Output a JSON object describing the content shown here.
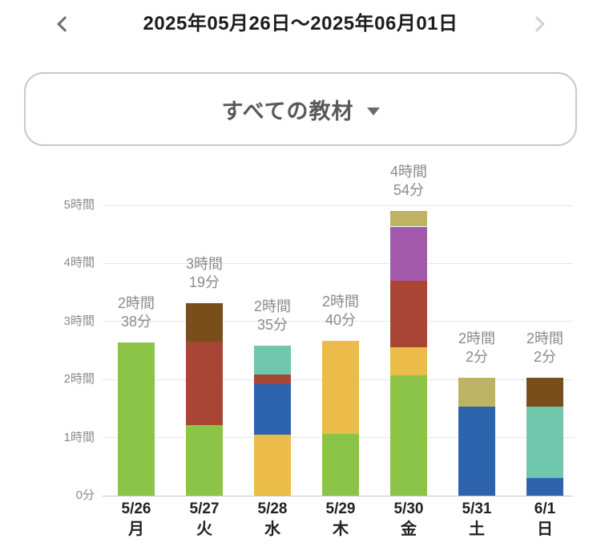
{
  "header": {
    "title": "2025年05月26日〜2025年06月01日",
    "prev_icon": "chevron-left-icon",
    "next_icon": "chevron-right-icon"
  },
  "filter": {
    "label": "すべての教材",
    "caret_icon": "caret-down-icon"
  },
  "chart_data": {
    "type": "bar",
    "stacked": true,
    "orientation": "vertical",
    "grid": true,
    "legend": "none",
    "y_axis": {
      "max_minutes": 300,
      "ticks": [
        {
          "minutes": 0,
          "label": "0分"
        },
        {
          "minutes": 60,
          "label": "1時間"
        },
        {
          "minutes": 120,
          "label": "2時間"
        },
        {
          "minutes": 180,
          "label": "3時間"
        },
        {
          "minutes": 240,
          "label": "4時間"
        },
        {
          "minutes": 300,
          "label": "5時間"
        }
      ]
    },
    "categories": [
      {
        "date": "5/26",
        "weekday": "月"
      },
      {
        "date": "5/27",
        "weekday": "火"
      },
      {
        "date": "5/28",
        "weekday": "水"
      },
      {
        "date": "5/29",
        "weekday": "木"
      },
      {
        "date": "5/30",
        "weekday": "金"
      },
      {
        "date": "5/31",
        "weekday": "土"
      },
      {
        "date": "6/1",
        "weekday": "日"
      }
    ],
    "series": [
      {
        "name": "material-green",
        "color": "#8cc447",
        "values_minutes": [
          158,
          73,
          0,
          64,
          124,
          0,
          0
        ]
      },
      {
        "name": "material-yellow",
        "color": "#ecbc4a",
        "values_minutes": [
          0,
          0,
          63,
          96,
          29,
          0,
          0
        ]
      },
      {
        "name": "material-blue",
        "color": "#2d64ad",
        "values_minutes": [
          0,
          0,
          52,
          0,
          0,
          92,
          18
        ]
      },
      {
        "name": "material-red",
        "color": "#a84534",
        "values_minutes": [
          0,
          86,
          10,
          0,
          69,
          0,
          0
        ]
      },
      {
        "name": "material-teal",
        "color": "#6fc7ac",
        "values_minutes": [
          0,
          0,
          30,
          0,
          0,
          0,
          74
        ]
      },
      {
        "name": "material-purple",
        "color": "#a35aac",
        "values_minutes": [
          0,
          0,
          0,
          0,
          56,
          0,
          0
        ]
      },
      {
        "name": "material-brown",
        "color": "#7a4e1a",
        "values_minutes": [
          0,
          40,
          0,
          0,
          0,
          0,
          30
        ]
      },
      {
        "name": "material-khaki",
        "color": "#bdb363",
        "values_minutes": [
          0,
          0,
          0,
          0,
          16,
          30,
          0
        ]
      }
    ],
    "totals": [
      {
        "minutes": 158,
        "label_lines": [
          "2時間",
          "38分"
        ]
      },
      {
        "minutes": 199,
        "label_lines": [
          "3時間",
          "19分"
        ]
      },
      {
        "minutes": 155,
        "label_lines": [
          "2時間",
          "35分"
        ]
      },
      {
        "minutes": 160,
        "label_lines": [
          "2時間",
          "40分"
        ]
      },
      {
        "minutes": 294,
        "label_lines": [
          "4時間",
          "54分"
        ]
      },
      {
        "minutes": 122,
        "label_lines": [
          "2時間",
          "2分"
        ]
      },
      {
        "minutes": 122,
        "label_lines": [
          "2時間",
          "2分"
        ]
      }
    ],
    "colors_meta": {
      "grid_line": "#e7e7e7",
      "axis_line": "#c6c6c6",
      "tick_label": "#8a8a8a",
      "total_label": "#8a8a8a",
      "category_label": "#222222"
    }
  }
}
